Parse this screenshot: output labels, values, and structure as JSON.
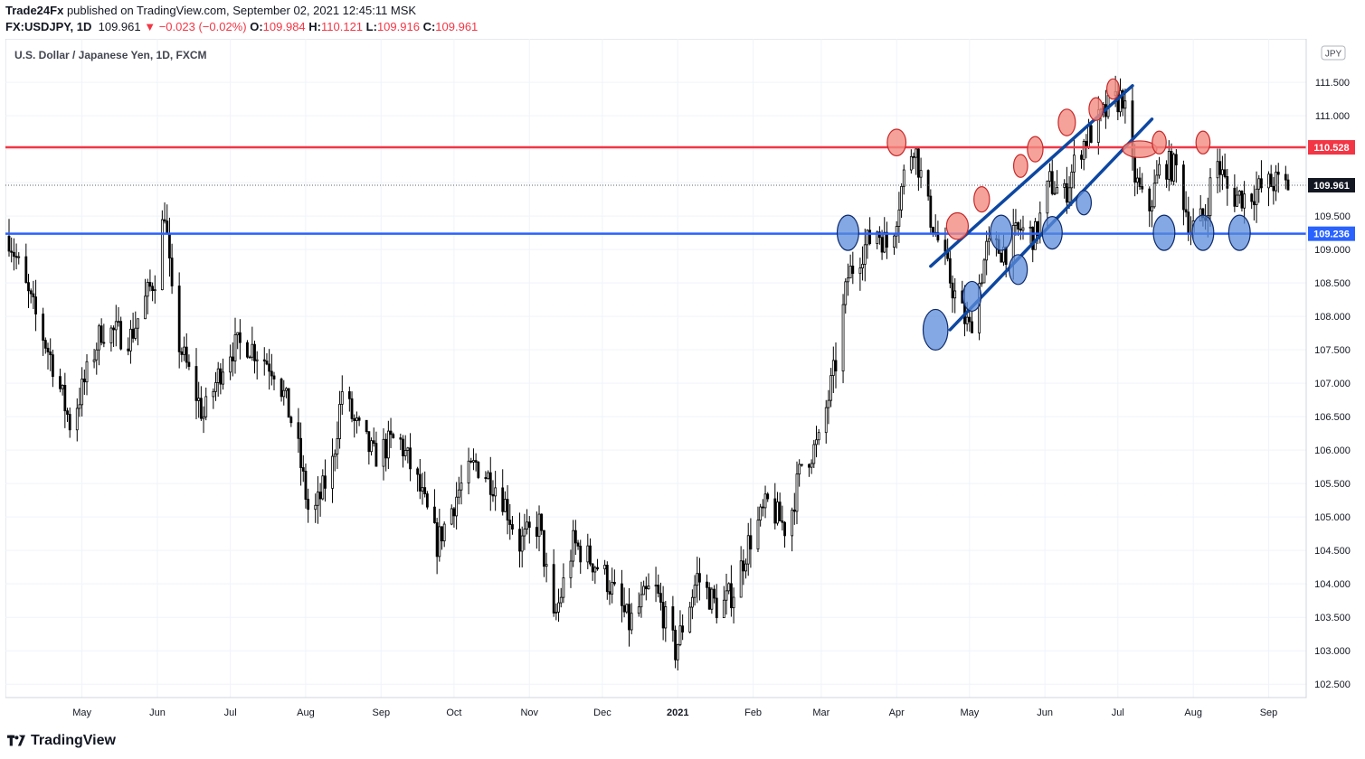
{
  "header": {
    "publisher": "Trade24Fx",
    "published_text": " published on TradingView.com, September 02, 2021 12:45:11 MSK",
    "symbol": "FX:USDJPY, 1D",
    "last": "109.961",
    "change": "−0.023 (−0.02%)",
    "o_label": "O:",
    "o_value": "109.984",
    "h_label": "H:",
    "h_value": "110.121",
    "l_label": "L:",
    "l_value": "109.916",
    "c_label": "C:",
    "c_value": "109.961"
  },
  "legend_title": "U.S. Dollar / Japanese Yen, 1D, FXCM",
  "currency_badge": "JPY",
  "footer": {
    "brand": "TradingView"
  },
  "colors": {
    "resistance": "#f23645",
    "support": "#2962ff",
    "channel": "#0d47a1",
    "candle": "#000000",
    "red_marker": "#f28b82",
    "blue_marker": "#5b8bd9"
  },
  "chart_data": {
    "type": "candlestick",
    "title": "U.S. Dollar / Japanese Yen, 1D, FXCM",
    "ylim": [
      102.3,
      112.15
    ],
    "y_ticks": [
      "102.500",
      "103.000",
      "103.500",
      "104.000",
      "104.500",
      "105.000",
      "105.500",
      "106.000",
      "106.500",
      "107.000",
      "107.500",
      "108.000",
      "108.500",
      "109.000",
      "109.500",
      "110.000",
      "110.500",
      "111.000",
      "111.500"
    ],
    "x_ticks": [
      {
        "label": "May",
        "t": 30
      },
      {
        "label": "Jun",
        "t": 61
      },
      {
        "label": "Jul",
        "t": 91
      },
      {
        "label": "Aug",
        "t": 122
      },
      {
        "label": "Sep",
        "t": 153
      },
      {
        "label": "Oct",
        "t": 183
      },
      {
        "label": "Nov",
        "t": 214
      },
      {
        "label": "Dec",
        "t": 244
      },
      {
        "label": "2021",
        "t": 275
      },
      {
        "label": "Feb",
        "t": 306
      },
      {
        "label": "Mar",
        "t": 334
      },
      {
        "label": "Apr",
        "t": 365
      },
      {
        "label": "May",
        "t": 395
      },
      {
        "label": "Jun",
        "t": 426
      },
      {
        "label": "Jul",
        "t": 456
      },
      {
        "label": "Aug",
        "t": 487
      },
      {
        "label": "Sep",
        "t": 518
      }
    ],
    "t_range": [
      0,
      526
    ],
    "anchors": [
      [
        0,
        109.2
      ],
      [
        8,
        108.3
      ],
      [
        18,
        107.3
      ],
      [
        25,
        106.4
      ],
      [
        30,
        106.9
      ],
      [
        38,
        107.8
      ],
      [
        50,
        107.7
      ],
      [
        60,
        108.6
      ],
      [
        64,
        109.6
      ],
      [
        68,
        107.8
      ],
      [
        80,
        106.5
      ],
      [
        90,
        107.5
      ],
      [
        98,
        107.6
      ],
      [
        110,
        107.2
      ],
      [
        118,
        106.2
      ],
      [
        124,
        104.9
      ],
      [
        133,
        105.8
      ],
      [
        137,
        106.9
      ],
      [
        142,
        106.4
      ],
      [
        150,
        105.9
      ],
      [
        160,
        106.2
      ],
      [
        168,
        105.5
      ],
      [
        176,
        104.6
      ],
      [
        185,
        105.4
      ],
      [
        192,
        105.8
      ],
      [
        202,
        105.4
      ],
      [
        210,
        104.6
      ],
      [
        218,
        104.9
      ],
      [
        224,
        103.4
      ],
      [
        232,
        104.6
      ],
      [
        244,
        104.2
      ],
      [
        255,
        103.4
      ],
      [
        265,
        104.0
      ],
      [
        274,
        103.0
      ],
      [
        283,
        104.1
      ],
      [
        292,
        103.6
      ],
      [
        298,
        103.9
      ],
      [
        304,
        104.6
      ],
      [
        312,
        105.2
      ],
      [
        320,
        104.8
      ],
      [
        326,
        105.8
      ],
      [
        333,
        106.1
      ],
      [
        340,
        107.3
      ],
      [
        345,
        108.6
      ],
      [
        351,
        109.0
      ],
      [
        357,
        109.3
      ],
      [
        362,
        109.0
      ],
      [
        368,
        110.1
      ],
      [
        372,
        110.6
      ],
      [
        378,
        109.6
      ],
      [
        384,
        108.9
      ],
      [
        390,
        108.2
      ],
      [
        395,
        107.8
      ],
      [
        402,
        109.0
      ],
      [
        410,
        109.0
      ],
      [
        416,
        109.3
      ],
      [
        422,
        109.2
      ],
      [
        428,
        110.0
      ],
      [
        434,
        109.8
      ],
      [
        440,
        110.5
      ],
      [
        446,
        110.8
      ],
      [
        452,
        111.1
      ],
      [
        458,
        111.3
      ],
      [
        462,
        110.2
      ],
      [
        468,
        109.5
      ],
      [
        474,
        110.3
      ],
      [
        480,
        110.2
      ],
      [
        486,
        109.3
      ],
      [
        492,
        109.5
      ],
      [
        496,
        110.4
      ],
      [
        502,
        109.8
      ],
      [
        508,
        109.8
      ],
      [
        514,
        109.9
      ],
      [
        520,
        110.0
      ],
      [
        526,
        109.96
      ]
    ],
    "levels": [
      {
        "price": 110.528,
        "label": "110.528",
        "color": "#f23645"
      },
      {
        "price": 109.236,
        "label": "109.236",
        "color": "#2962ff"
      },
      {
        "price": 109.961,
        "label": "109.961",
        "color": "#131722",
        "dotted": true
      }
    ],
    "channel_lines": [
      {
        "from": [
          379,
          108.75
        ],
        "to": [
          462,
          111.45
        ]
      },
      {
        "from": [
          387,
          107.8
        ],
        "to": [
          470,
          110.95
        ]
      }
    ],
    "red_markers": [
      [
        365,
        110.6,
        1.2
      ],
      [
        390,
        109.35,
        1.4
      ],
      [
        400,
        109.75,
        1.0
      ],
      [
        416,
        110.25,
        0.9
      ],
      [
        422,
        110.5,
        1.0
      ],
      [
        435,
        110.9,
        1.1
      ],
      [
        447,
        111.1,
        0.9
      ],
      [
        454,
        111.4,
        0.8
      ],
      [
        465,
        110.5,
        2.2
      ],
      [
        473,
        110.6,
        0.9
      ],
      [
        491,
        110.6,
        0.9
      ]
    ],
    "blue_markers": [
      [
        345,
        109.25,
        1.3
      ],
      [
        381,
        107.8,
        1.5
      ],
      [
        396,
        108.3,
        1.1
      ],
      [
        408,
        109.25,
        1.3
      ],
      [
        415,
        108.7,
        1.1
      ],
      [
        429,
        109.25,
        1.2
      ],
      [
        442,
        109.7,
        0.9
      ],
      [
        475,
        109.25,
        1.3
      ],
      [
        491,
        109.25,
        1.3
      ],
      [
        506,
        109.25,
        1.3
      ]
    ]
  }
}
